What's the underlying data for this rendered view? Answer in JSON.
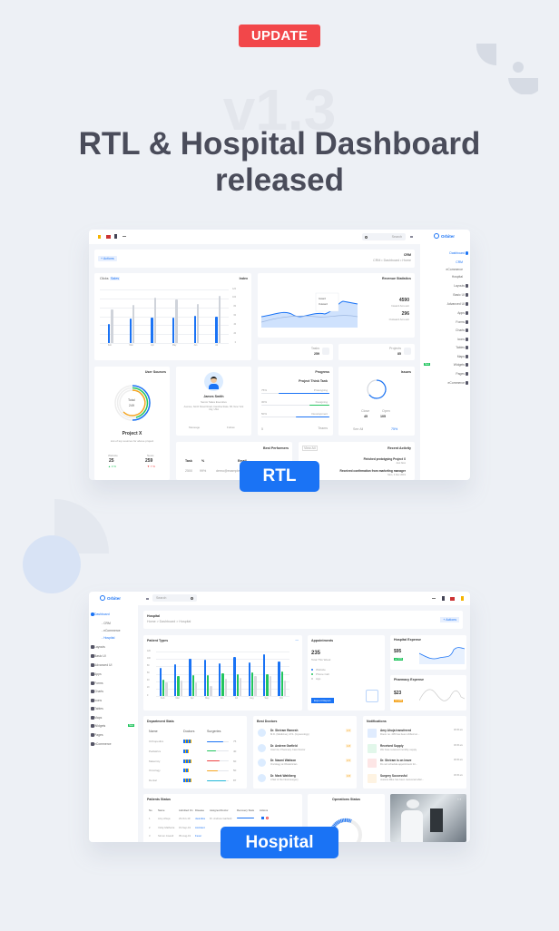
{
  "header": {
    "badge": "UPDATE",
    "version": "v1.3",
    "title_line1": "RTL & Hospital Dashboard",
    "title_line2": "released"
  },
  "colors": {
    "background": "#edf0f5",
    "update_badge": "#f2474a",
    "accent": "#1a73f5",
    "success": "#22c55e",
    "danger": "#ef4444",
    "warning": "#f5a623",
    "title": "#4a4c5a"
  },
  "rtl": {
    "label": "RTL",
    "brand": "Orbiter",
    "search_placeholder": "Search",
    "actions": "+ Actions",
    "page_title": "CRM",
    "breadcrumb": "CRM • Dashboard • Home",
    "sidebar": [
      {
        "label": "Dashboard",
        "active": true
      },
      {
        "label": "CRM",
        "sub": true,
        "active": true
      },
      {
        "label": "eCommerce",
        "sub": true
      },
      {
        "label": "Hospital",
        "sub": true
      },
      {
        "label": "Layouts"
      },
      {
        "label": "Basic UI"
      },
      {
        "label": "Advanced UI"
      },
      {
        "label": "Apps"
      },
      {
        "label": "Forms"
      },
      {
        "label": "Charts"
      },
      {
        "label": "Icons"
      },
      {
        "label": "Tables"
      },
      {
        "label": "Maps"
      },
      {
        "label": "Widgets",
        "badge": "New"
      },
      {
        "label": "Pages"
      },
      {
        "label": "eCommerce"
      }
    ],
    "index_chart": {
      "title": "Index",
      "tabs": [
        "Clicks",
        "Sales"
      ],
      "categories": [
        "Feb",
        "Mar",
        "Apr",
        "May",
        "Jun",
        "Jul"
      ],
      "ylim": [
        0,
        120
      ],
      "yticks": [
        0,
        20,
        40,
        60,
        80,
        100,
        120
      ],
      "series": [
        {
          "values": [
            43,
            55,
            57,
            56,
            61,
            58
          ],
          "color": "#1a73f5"
        },
        {
          "values": [
            76,
            85,
            102,
            97,
            87,
            105
          ],
          "color": "#cfd3da"
        }
      ]
    },
    "revenue": {
      "title": "Revenue Statistics",
      "inward_value": "4590",
      "inward_label": "Inward Amount",
      "outward_value": "296",
      "outward_label": "Outward Amount",
      "tooltip_items": [
        "Inward",
        "Outward"
      ]
    },
    "tasks": {
      "label": "Tasks",
      "value": "259"
    },
    "projects": {
      "label": "Projects",
      "value": "85"
    },
    "user_sources": {
      "title": "User Sources",
      "total_label": "Total",
      "total": "249",
      "project": "Project X",
      "desc": "List of top sources for above project",
      "website_label": "Website",
      "website_value": "25",
      "website_change": "▲ 3 %",
      "news_label": "News",
      "news_value": "259",
      "news_change": "▼ 7 %"
    },
    "profile": {
      "name": "James Smith",
      "role": "Senior Sales Executive",
      "address": "Avenue, North Street Road, Carolina State, 58, New York City, USA",
      "message": "Message",
      "follow": "Follow"
    },
    "progress": {
      "title": "Progress",
      "project": "Project Think Tank",
      "items": [
        {
          "label": "Prototyping",
          "pct": 75,
          "color": "#1a73f5"
        },
        {
          "label": "Designing",
          "pct": 30,
          "color": "#22c55e"
        },
        {
          "label": "Development",
          "pct": 50,
          "color": "#1a73f5"
        }
      ],
      "teams": "Teams",
      "count": "5"
    },
    "issues": {
      "title": "Issues",
      "close_label": "Close",
      "close": "45",
      "open_label": "Open",
      "open": "105",
      "see_all": "See All",
      "pct": "75%"
    },
    "best_performers": {
      "title": "Best Performers",
      "cols": [
        "Task",
        "%",
        "Email"
      ],
      "row": [
        "2500",
        "99%",
        "demo@example.com"
      ]
    },
    "recent_activity": {
      "title": "Recent Activity",
      "view_all": "View All",
      "items": [
        {
          "text": "Finished prototyping Project X",
          "time": "Just Now"
        },
        {
          "text": "Received confirmation from marketing manager",
          "time": "Mon, 4 Dec 2019"
        }
      ]
    }
  },
  "hospital": {
    "label": "Hospital",
    "brand": "Orbiter",
    "search_placeholder": "Search",
    "page_title": "Hospital",
    "breadcrumb": "Home > Dashboard > Hospital",
    "actions": "+ Actions",
    "sidebar": [
      {
        "label": "Dashboard",
        "active": true
      },
      {
        "label": "- CRM",
        "sub": true
      },
      {
        "label": "- eCommerce",
        "sub": true
      },
      {
        "label": "- Hospital",
        "sub": true,
        "active": true
      },
      {
        "label": "Layouts"
      },
      {
        "label": "Basic UI"
      },
      {
        "label": "Advanced UI"
      },
      {
        "label": "Apps"
      },
      {
        "label": "Forms"
      },
      {
        "label": "Charts"
      },
      {
        "label": "Icons"
      },
      {
        "label": "Tables"
      },
      {
        "label": "Maps"
      },
      {
        "label": "Widgets",
        "badge": "New"
      },
      {
        "label": "Pages"
      },
      {
        "label": "eCommerce"
      }
    ],
    "patient_types": {
      "title": "Patient Types",
      "categories": [
        "Feb",
        "Mar",
        "Apr",
        "May",
        "Jun",
        "Jul",
        "Aug",
        "Sep",
        "Oct"
      ],
      "ylim": [
        0,
        120
      ],
      "yticks": [
        0,
        20,
        40,
        60,
        80,
        100,
        120
      ],
      "series": [
        {
          "values": [
            75,
            85,
            100,
            97,
            87,
            105,
            90,
            113,
            93
          ],
          "color": "#1a73f5"
        },
        {
          "values": [
            45,
            55,
            57,
            56,
            61,
            58,
            63,
            60,
            66
          ],
          "color": "#22c55e"
        },
        {
          "values": [
            36,
            42,
            37,
            28,
            47,
            49,
            53,
            53,
            42
          ],
          "color": "#d9d9df"
        }
      ]
    },
    "appointments": {
      "title": "Appointments",
      "value": "235",
      "sub": "Total This Week",
      "legend": [
        {
          "label": "Website",
          "color": "#1a73f5"
        },
        {
          "label": "Phone Call",
          "color": "#22c55e"
        },
        {
          "label": "App",
          "color": "#cccccc"
        }
      ],
      "export": "Export Report"
    },
    "hospital_expense": {
      "title": "Hospital Expense",
      "value": "$95",
      "badge": "▲ 10%"
    },
    "pharmacy_expense": {
      "title": "Pharmacy Expense",
      "value": "$23",
      "badge": "▼ 12%"
    },
    "department_stats": {
      "title": "Department Stats",
      "cols": [
        "Name",
        "Doctors",
        "Surgeries"
      ],
      "rows": [
        {
          "name": "Orthopedics",
          "value": 75,
          "color": "#1a73f5"
        },
        {
          "name": "Pediatrics",
          "value": 40,
          "color": "#22c55e"
        },
        {
          "name": "Maternity",
          "value": 60,
          "color": "#ef4444"
        },
        {
          "name": "Oncology",
          "value": 50,
          "color": "#f5a623"
        },
        {
          "name": "Dental",
          "value": 87,
          "color": "#22b8d8"
        }
      ]
    },
    "best_doctors": {
      "title": "Best Doctors",
      "items": [
        {
          "name": "Dr. Shriram Ramesh",
          "desc": "M.D. (Medicine), M.S. (Gynecology)",
          "rating": "4.5"
        },
        {
          "name": "Dr. Andrew Garfield",
          "desc": "Internist, Pharmacy Care Doctor",
          "rating": "4.8"
        },
        {
          "name": "Dr. Naomi Wattson",
          "desc": "Oncology at Obstetrician",
          "rating": "3.5"
        },
        {
          "name": "Dr. Mark Wahlberg",
          "desc": "Chief of the Neurosurgery",
          "rating": "3.8"
        }
      ]
    },
    "notifications": {
      "title": "Notifications",
      "items": [
        {
          "title": "Amy Ahuja transferred",
          "desc": "Room no. 405 has been shifted on...",
          "time": "08:45 am",
          "color": "#1a73f5"
        },
        {
          "title": "Received Supply",
          "desc": "We have received monthly supply",
          "time": "08:45 am",
          "color": "#22c55e"
        },
        {
          "title": "Dr. Shriram is on leave",
          "desc": "Do not schedule appointment for...",
          "time": "08:45 am",
          "color": "#ef4444"
        },
        {
          "title": "Surgery Successful",
          "desc": "Jessica Mike has been recovered after...",
          "time": "08:45 am",
          "color": "#f5a623"
        }
      ]
    },
    "patients_status": {
      "title": "Patients Status",
      "cols": [
        "No",
        "Name",
        "Admitted On",
        "Disease",
        "Assigned Doctor",
        "Recovery Stats",
        "Actions"
      ],
      "rows": [
        [
          "1",
          "Amy Ahuja",
          "23-Oct-19",
          "Jaundice",
          "Dr. Andrew Garfield"
        ],
        [
          "2",
          "Vicky Malhotra",
          "15-Sep-19",
          "Accident",
          ""
        ],
        [
          "3",
          "Simon Cowell",
          "05-Aug-19",
          "Fever",
          ""
        ]
      ]
    },
    "operations_status": {
      "title": "Operations Status"
    }
  }
}
